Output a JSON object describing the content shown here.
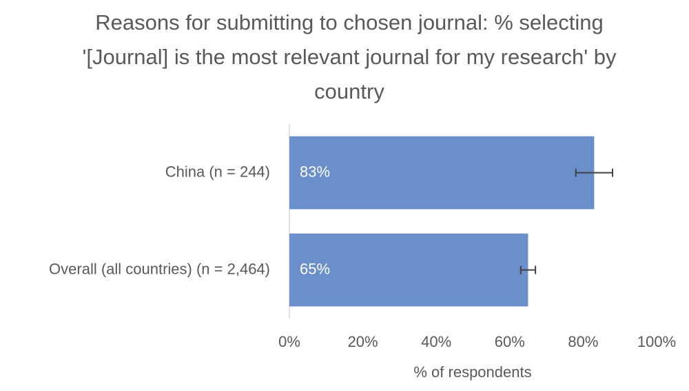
{
  "chart_data": {
    "type": "bar",
    "orientation": "horizontal",
    "title": "Reasons for submitting to chosen journal: % selecting '[Journal] is the most relevant journal for my research' by country",
    "categories": [
      "China (n = 244)",
      "Overall (all countries) (n = 2,464)"
    ],
    "values": [
      83,
      65
    ],
    "value_labels": [
      "83%",
      "65%"
    ],
    "errors": [
      5,
      2
    ],
    "color": "#6a8fcb",
    "error_color": "#404040",
    "xlabel": "% of respondents",
    "xlim": [
      0,
      100
    ],
    "xticks": [
      {
        "value": 0,
        "label": "0%"
      },
      {
        "value": 20,
        "label": "20%"
      },
      {
        "value": 40,
        "label": "40%"
      },
      {
        "value": 60,
        "label": "60%"
      },
      {
        "value": 80,
        "label": "80%"
      },
      {
        "value": 100,
        "label": "100%"
      }
    ],
    "grid": false
  }
}
